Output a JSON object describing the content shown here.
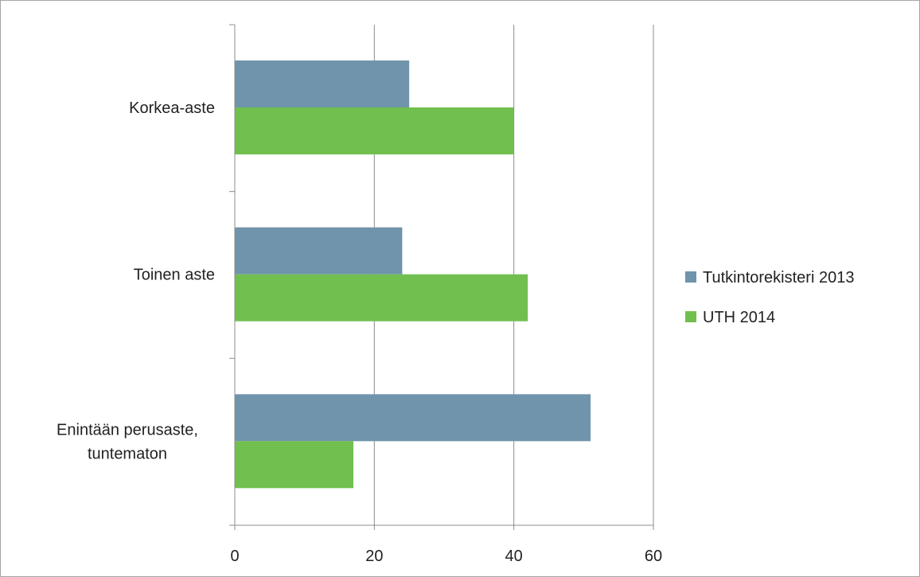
{
  "chart_data": {
    "type": "bar",
    "orientation": "horizontal",
    "categories": [
      "Korkea-aste",
      "Toinen aste",
      "Enintään perusaste, tuntematon"
    ],
    "category_lines": [
      [
        "Korkea-aste"
      ],
      [
        "Toinen aste"
      ],
      [
        "Enintään perusaste,",
        "tuntematon"
      ]
    ],
    "series": [
      {
        "name": "Tutkintorekisteri 2013",
        "values": [
          25,
          24,
          51
        ],
        "color": "#7094ab"
      },
      {
        "name": "UTH 2014",
        "values": [
          40,
          42,
          17
        ],
        "color": "#70bf4f"
      }
    ],
    "x_ticks": [
      "0",
      "20",
      "40",
      "60"
    ],
    "xlim": [
      0,
      60
    ],
    "title": "",
    "xlabel": "",
    "ylabel": "",
    "grid": "vertical",
    "legend": "right"
  }
}
